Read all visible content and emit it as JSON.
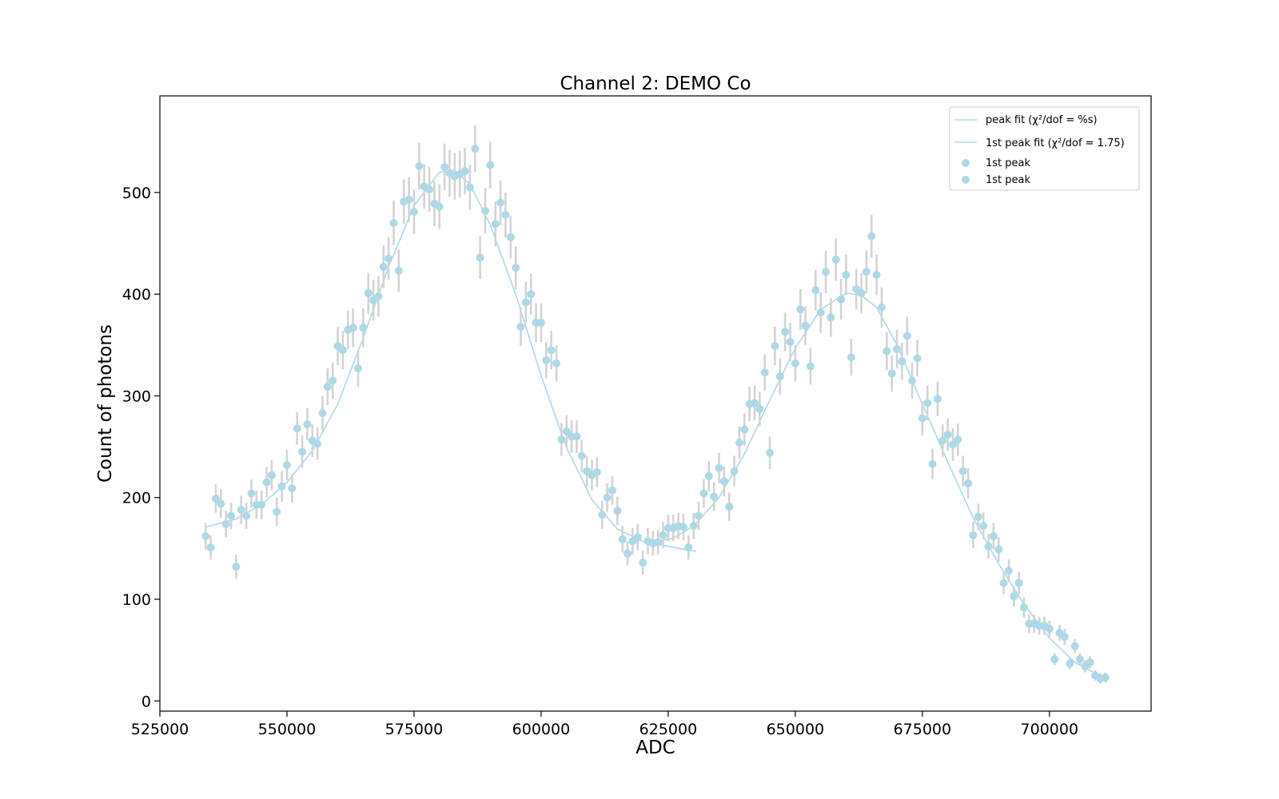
{
  "chart_data": {
    "type": "scatter",
    "title": "Channel 2: DEMO Co",
    "xlabel": "ADC",
    "ylabel": "Count of photons",
    "xlim": [
      525000,
      720000
    ],
    "ylim": [
      -10,
      595
    ],
    "xticks": [
      525000,
      550000,
      575000,
      600000,
      625000,
      650000,
      675000,
      700000
    ],
    "yticks": [
      0,
      100,
      200,
      300,
      400,
      500
    ],
    "grid": false,
    "legend_position": "top-right",
    "legend": [
      {
        "kind": "line",
        "text": "peak fit (χ²/dof = %s)"
      },
      {
        "kind": "line",
        "text": "1st peak fit (χ²/dof = 1.75)"
      },
      {
        "kind": "marker",
        "text": "1st peak"
      },
      {
        "kind": "marker",
        "text": "1st peak"
      }
    ],
    "colors": {
      "points": "#add8e6",
      "fit": "#add8e6",
      "errorbars": "#d3d3d3"
    },
    "series": [
      {
        "name": "1st peak",
        "x": [
          534000,
          535000,
          536000,
          537000,
          538000,
          539000,
          540000,
          541000,
          542000,
          543000,
          544000,
          545000,
          546000,
          547000,
          548000,
          549000,
          550000,
          551000,
          552000,
          553000,
          554000,
          555000,
          556000,
          557000,
          558000,
          559000,
          560000,
          561000,
          562000,
          563000,
          564000,
          565000,
          566000,
          567000,
          568000,
          569000,
          570000,
          571000,
          572000,
          573000,
          574000,
          575000,
          576000,
          577000,
          578000,
          579000,
          580000,
          581000,
          582000,
          583000,
          584000,
          585000,
          586000,
          587000,
          588000,
          589000,
          590000,
          591000,
          592000,
          593000,
          594000,
          595000,
          596000,
          597000,
          598000,
          599000,
          600000,
          601000,
          602000,
          603000,
          604000,
          605000,
          606000,
          607000,
          608000,
          609000,
          610000,
          611000,
          612000,
          613000,
          614000,
          615000,
          616000,
          617000,
          618000,
          619000,
          620000,
          621000,
          622000,
          623000,
          624000,
          625000,
          626000,
          627000,
          628000,
          629000,
          630000
        ],
        "y": [
          162,
          151,
          199,
          194,
          174,
          182,
          132,
          188,
          182,
          204,
          193,
          193,
          215,
          222,
          186,
          211,
          232,
          209,
          268,
          245,
          272,
          256,
          253,
          283,
          309,
          315,
          349,
          345,
          365,
          367,
          327,
          367,
          401,
          394,
          398,
          427,
          435,
          470,
          423,
          491,
          493,
          481,
          526,
          506,
          503,
          489,
          486,
          525,
          519,
          516,
          518,
          521,
          505,
          543,
          436,
          482,
          527,
          469,
          490,
          478,
          456,
          426,
          368,
          392,
          400,
          372,
          372,
          335,
          345,
          332,
          257,
          265,
          260,
          260,
          241,
          226,
          222,
          225,
          183,
          200,
          207,
          187,
          159,
          145,
          157,
          161,
          136,
          157,
          155,
          156,
          163,
          170,
          170,
          172,
          171,
          151,
          172
        ],
        "yerr": [
          13,
          12,
          14,
          14,
          13,
          13,
          12,
          14,
          13,
          14,
          14,
          14,
          15,
          15,
          14,
          15,
          15,
          14,
          16,
          16,
          16,
          16,
          16,
          17,
          18,
          18,
          19,
          19,
          19,
          19,
          18,
          19,
          20,
          20,
          20,
          21,
          21,
          22,
          21,
          22,
          22,
          22,
          23,
          22,
          22,
          22,
          22,
          23,
          23,
          23,
          23,
          23,
          22,
          23,
          21,
          22,
          23,
          22,
          22,
          22,
          21,
          21,
          19,
          20,
          20,
          19,
          19,
          18,
          19,
          18,
          16,
          16,
          16,
          16,
          16,
          15,
          15,
          15,
          14,
          14,
          14,
          14,
          13,
          12,
          13,
          13,
          12,
          13,
          12,
          12,
          13,
          13,
          13,
          13,
          13,
          12,
          13
        ]
      },
      {
        "name": "1st peak",
        "x": [
          631000,
          632000,
          633000,
          634000,
          635000,
          636000,
          637000,
          638000,
          639000,
          640000,
          641000,
          642000,
          643000,
          644000,
          645000,
          646000,
          647000,
          648000,
          649000,
          650000,
          651000,
          652000,
          653000,
          654000,
          655000,
          656000,
          657000,
          658000,
          659000,
          660000,
          661000,
          662000,
          663000,
          664000,
          665000,
          666000,
          667000,
          668000,
          669000,
          670000,
          671000,
          672000,
          673000,
          674000,
          675000,
          676000,
          677000,
          678000,
          679000,
          680000,
          681000,
          682000,
          683000,
          684000,
          685000,
          686000,
          687000,
          688000,
          689000,
          690000,
          691000,
          692000,
          693000,
          694000,
          695000,
          696000,
          697000,
          698000,
          699000,
          700000,
          701000,
          702000,
          703000,
          704000,
          705000,
          706000,
          707000,
          708000,
          709000,
          710000,
          711000
        ],
        "y": [
          182,
          204,
          221,
          201,
          229,
          216,
          191,
          226,
          254,
          267,
          292,
          293,
          287,
          323,
          244,
          349,
          319,
          363,
          353,
          332,
          385,
          369,
          329,
          404,
          382,
          422,
          377,
          434,
          395,
          419,
          338,
          405,
          401,
          422,
          457,
          419,
          387,
          344,
          322,
          346,
          334,
          359,
          315,
          337,
          278,
          293,
          233,
          297,
          256,
          262,
          252,
          257,
          226,
          214,
          163,
          181,
          172,
          152,
          162,
          149,
          116,
          128,
          103,
          116,
          92,
          76,
          76,
          74,
          74,
          71,
          41,
          67,
          63,
          37,
          54,
          41,
          34,
          38,
          25,
          22,
          23
        ],
        "yerr": [
          14,
          14,
          15,
          14,
          15,
          15,
          14,
          15,
          16,
          16,
          17,
          17,
          17,
          18,
          16,
          19,
          18,
          19,
          19,
          18,
          20,
          19,
          18,
          20,
          20,
          21,
          19,
          21,
          20,
          20,
          18,
          20,
          20,
          21,
          21,
          20,
          20,
          19,
          18,
          19,
          18,
          19,
          18,
          18,
          17,
          17,
          15,
          17,
          16,
          16,
          16,
          16,
          15,
          15,
          13,
          13,
          13,
          12,
          13,
          12,
          11,
          11,
          10,
          11,
          10,
          9,
          9,
          9,
          9,
          8,
          6,
          8,
          8,
          6,
          7,
          6,
          6,
          6,
          5,
          5,
          5
        ]
      }
    ],
    "fits": [
      {
        "name": "1st peak fit (χ²/dof = 1.75)",
        "x": [
          534000,
          540000,
          545000,
          550000,
          555000,
          560000,
          565000,
          570000,
          575000,
          580000,
          583000,
          586000,
          590000,
          595000,
          600000,
          605000,
          610000,
          615000,
          620000,
          625000,
          630500
        ],
        "y": [
          171,
          179,
          193,
          215,
          246,
          292,
          357,
          427,
          487,
          520,
          522,
          508,
          468,
          400,
          320,
          249,
          198,
          169,
          157,
          152,
          147
        ]
      },
      {
        "name": "peak fit (χ²/dof = %s)",
        "x": [
          622000,
          626000,
          630000,
          635000,
          640000,
          645000,
          650000,
          655000,
          660000,
          663000,
          666000,
          670000,
          675000,
          680000,
          685000,
          690000,
          695000,
          700000,
          705000,
          711000
        ],
        "y": [
          156,
          160,
          172,
          200,
          243,
          296,
          347,
          385,
          401,
          399,
          387,
          350,
          292,
          235,
          180,
          135,
          95,
          62,
          38,
          22
        ]
      }
    ]
  }
}
